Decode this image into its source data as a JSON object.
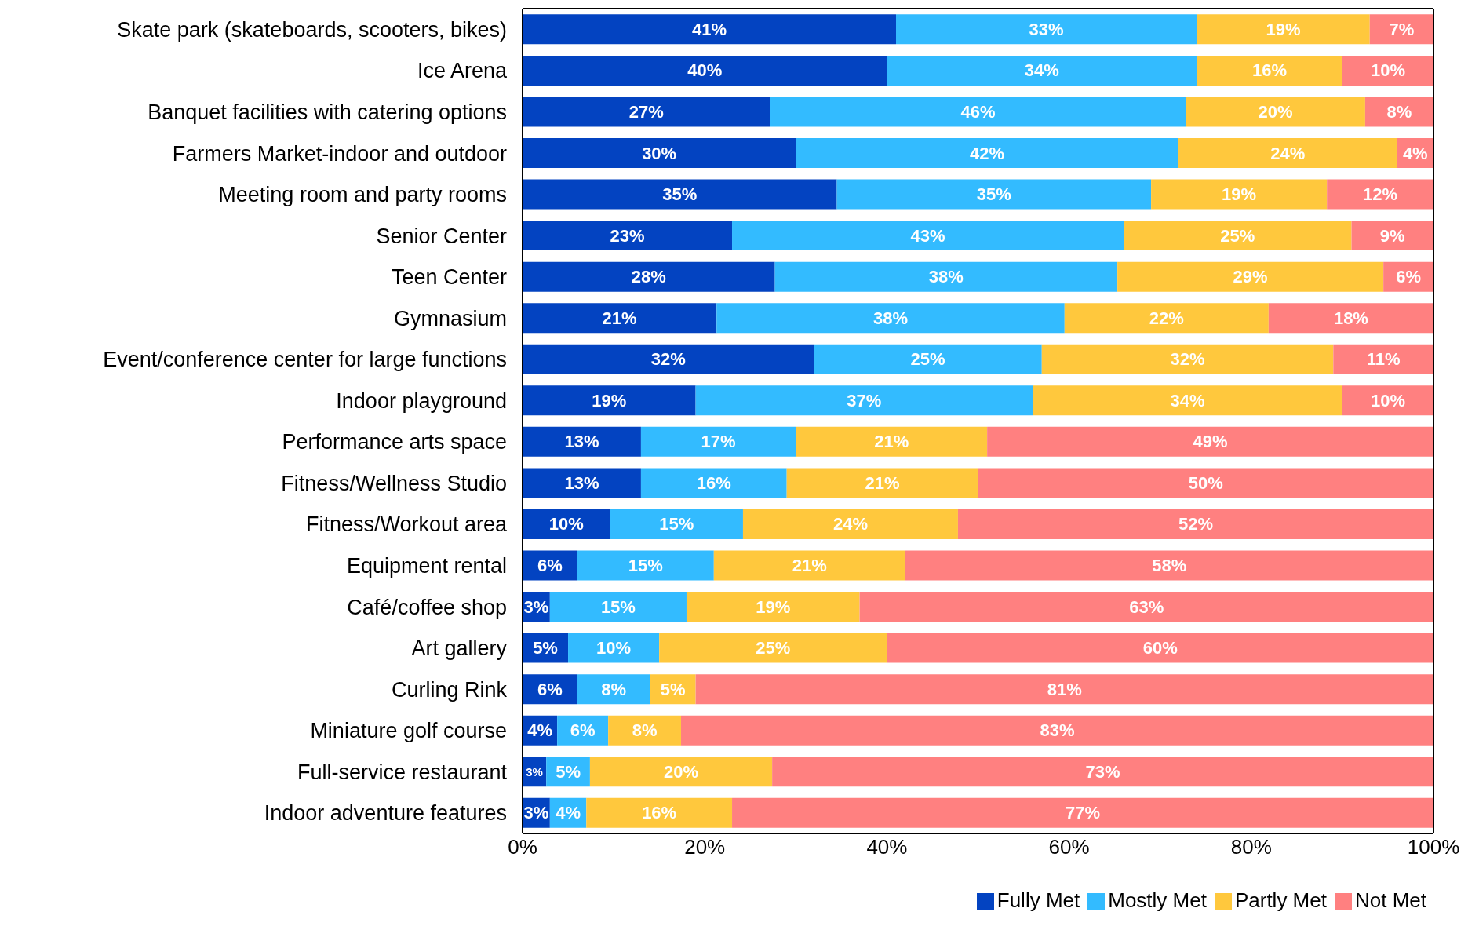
{
  "chart_data": {
    "type": "bar",
    "orientation": "horizontal",
    "stacked": true,
    "categories": [
      "Skate park (skateboards, scooters, bikes)",
      "Ice Arena",
      "Banquet facilities with catering options",
      "Farmers Market-indoor and outdoor",
      "Meeting room and party rooms",
      "Senior Center",
      "Teen Center",
      "Gymnasium",
      "Event/conference center for large functions",
      "Indoor playground",
      "Performance arts space ",
      "Fitness/Wellness Studio",
      "Fitness/Workout area",
      "Equipment rental",
      "Café/coffee shop",
      "Art gallery",
      "Curling Rink",
      "Miniature golf course",
      "Full-service restaurant",
      "Indoor adventure features"
    ],
    "series": [
      {
        "name": "Fully Met",
        "color": "#0343c1",
        "values": [
          41,
          40,
          27.2,
          30,
          34.5,
          23,
          27.7,
          21.3,
          32,
          19,
          13,
          13,
          9.6,
          6,
          3,
          5,
          6,
          3.8,
          2.6,
          3
        ],
        "value_labels": [
          "41%",
          "40%",
          "27%",
          "30%",
          "35%",
          "23%",
          "28%",
          "21%",
          "32%",
          "19%",
          "13%",
          "13%",
          "10%",
          "6%",
          "3%",
          "5%",
          "6%",
          "4%",
          "3%",
          "3%"
        ]
      },
      {
        "name": "Mostly Met",
        "color": "#33bbff",
        "values": [
          33,
          34,
          45.6,
          42,
          34.5,
          43,
          37.6,
          38.2,
          25,
          37,
          17,
          16,
          14.6,
          15,
          15,
          10,
          8,
          5.6,
          4.8,
          4
        ],
        "value_labels": [
          "33%",
          "34%",
          "46%",
          "42%",
          "35%",
          "43%",
          "38%",
          "38%",
          "25%",
          "37%",
          "17%",
          "16%",
          "15%",
          "15%",
          "15%",
          "10%",
          "8%",
          "6%",
          "5%",
          "4%"
        ]
      },
      {
        "name": "Partly Met",
        "color": "#ffc83d",
        "values": [
          19,
          16,
          19.7,
          24,
          19.3,
          25,
          29.2,
          22.4,
          32,
          34,
          21,
          21,
          23.6,
          21,
          19,
          25,
          5,
          8.0,
          20,
          16
        ],
        "value_labels": [
          "19%",
          "16%",
          "20%",
          "24%",
          "19%",
          "25%",
          "29%",
          "22%",
          "32%",
          "34%",
          "21%",
          "21%",
          "24%",
          "21%",
          "19%",
          "25%",
          "5%",
          "8%",
          "20%",
          "16%"
        ]
      },
      {
        "name": "Not Met",
        "color": "#ff8080",
        "values": [
          7,
          10,
          7.5,
          4,
          11.7,
          9,
          5.5,
          18.1,
          11,
          10,
          49,
          50,
          52.2,
          58,
          63,
          60,
          81,
          82.6,
          72.6,
          77
        ],
        "value_labels": [
          "7%",
          "10%",
          "8%",
          "4%",
          "12%",
          "9%",
          "6%",
          "18%",
          "11%",
          "10%",
          "49%",
          "50%",
          "52%",
          "58%",
          "63%",
          "60%",
          "81%",
          "83%",
          "73%",
          "77%"
        ]
      }
    ],
    "xlim": [
      0,
      100
    ],
    "xticks": [
      {
        "value": 0,
        "label": "0%"
      },
      {
        "value": 20,
        "label": "20%"
      },
      {
        "value": 40,
        "label": "40%"
      },
      {
        "value": 60,
        "label": "60%"
      },
      {
        "value": 80,
        "label": "80%"
      },
      {
        "value": 100,
        "label": "100%"
      }
    ],
    "grid": false,
    "legend": "bottom right"
  }
}
